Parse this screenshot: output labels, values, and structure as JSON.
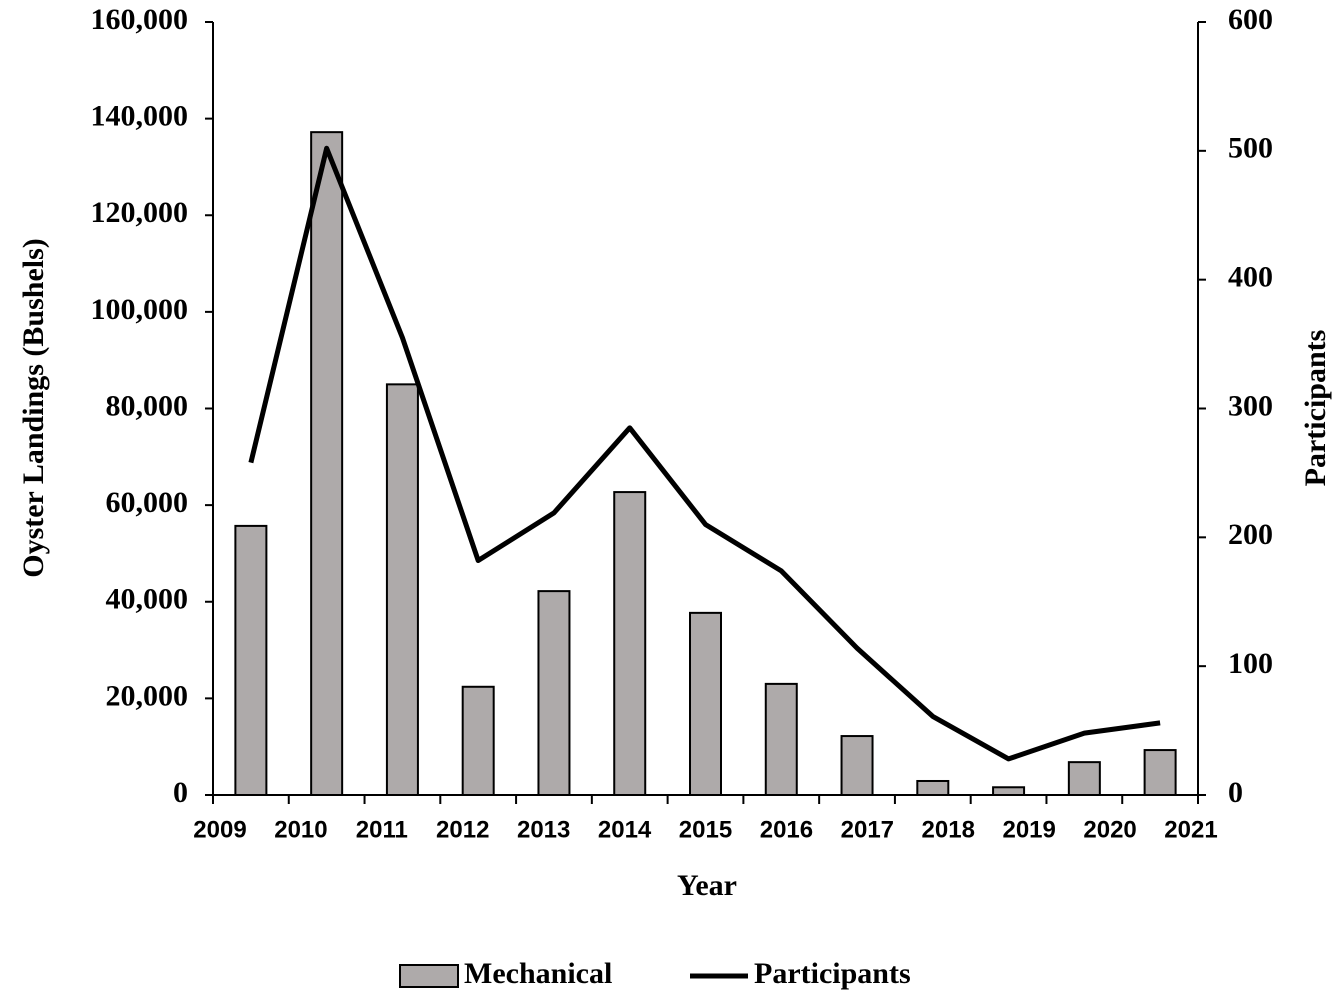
{
  "chart_data": {
    "type": "bar_line",
    "xlabel": "Year",
    "ylabel": "Oyster Landings (Bushels)",
    "y2label": "Participants",
    "categories": [
      "2009",
      "2010",
      "2011",
      "2012",
      "2013",
      "2014",
      "2015",
      "2016",
      "2017",
      "2018",
      "2019",
      "2020",
      "2021"
    ],
    "series": [
      {
        "name": "Mechanical",
        "type": "bar",
        "color": "#aeaaaa",
        "values": [
          55700,
          137200,
          85000,
          22400,
          42200,
          62700,
          37700,
          23000,
          12200,
          2900,
          1600,
          6800,
          9300
        ]
      },
      {
        "name": "Participants",
        "type": "line",
        "axis": "y2",
        "color": "#000000",
        "values": [
          258,
          502,
          355,
          182,
          219,
          285,
          210,
          174,
          114,
          61,
          28,
          48,
          56
        ]
      }
    ],
    "ylim": [
      0,
      160000
    ],
    "yticks": [
      0,
      {
        "value": 20000,
        "label": "20,000"
      },
      {
        "value": 40000,
        "label": "40,000"
      },
      {
        "value": 60000,
        "label": "60,000"
      },
      {
        "value": 80000,
        "label": "80,000"
      },
      {
        "value": 100000,
        "label": "100,000"
      },
      {
        "value": 120000,
        "label": "120,000"
      },
      {
        "value": 140000,
        "label": "140,000"
      },
      {
        "value": 160000,
        "label": "160,000"
      }
    ],
    "y2lim": [
      0,
      600
    ],
    "y2ticks": [
      0,
      100,
      200,
      300,
      400,
      500,
      600
    ],
    "legend": "bottom"
  }
}
